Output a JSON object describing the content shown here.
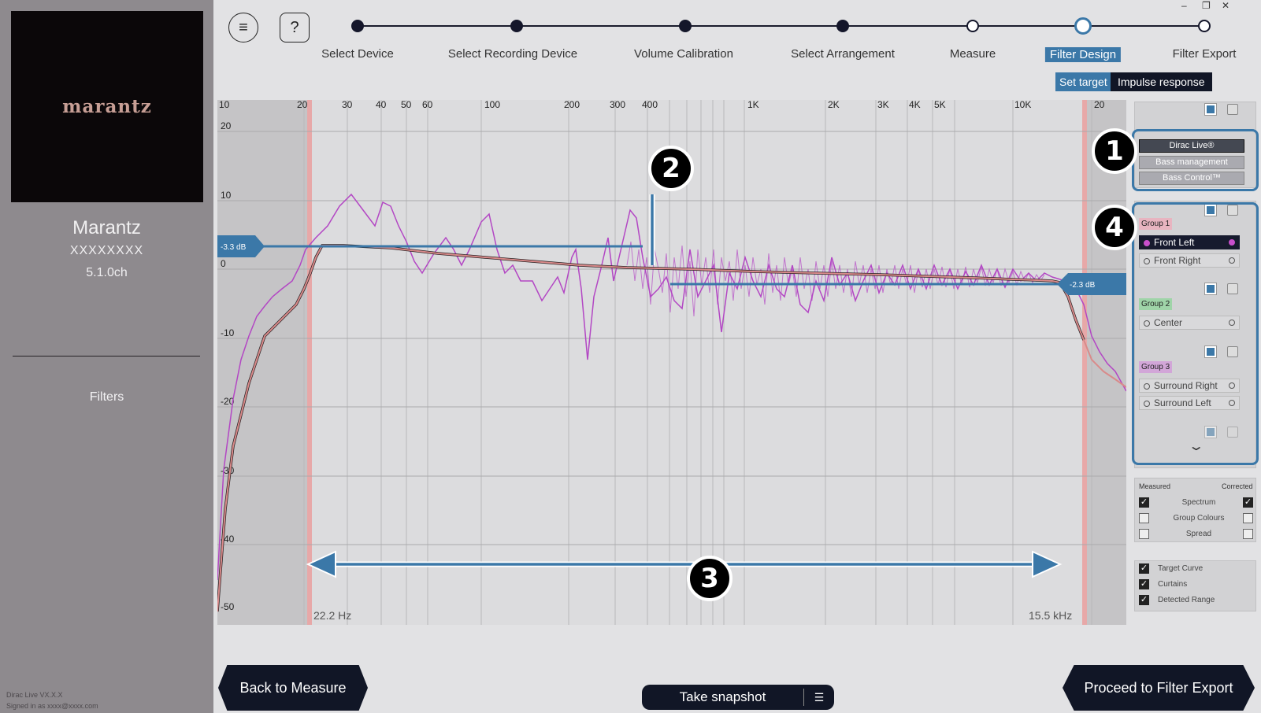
{
  "window": {
    "minimize": "–",
    "restore": "❐",
    "close": "✕"
  },
  "sidebar": {
    "logo": "marantz",
    "device_name": "Marantz",
    "device_model": "XXXXXXXX",
    "channels": "5.1.0ch",
    "section": "Filters",
    "footer_version": "Dirac Live VX.X.X",
    "footer_signed": "Signed in as xxxx@xxxx.com"
  },
  "toolbar": {
    "menu_icon": "≡",
    "help_icon": "?"
  },
  "steps": [
    {
      "label": "Select Device",
      "state": "done"
    },
    {
      "label": "Select Recording Device",
      "state": "done"
    },
    {
      "label": "Volume Calibration",
      "state": "done"
    },
    {
      "label": "Select Arrangement",
      "state": "done"
    },
    {
      "label": "Measure",
      "state": "open"
    },
    {
      "label": "Filter Design",
      "state": "active"
    },
    {
      "label": "Filter Export",
      "state": "open"
    }
  ],
  "subtabs": {
    "selected": "Set target",
    "other": "Impulse response"
  },
  "graph": {
    "x_ticks": [
      "10",
      "20",
      "30",
      "40",
      "50",
      "60",
      "100",
      "200",
      "300",
      "400",
      "1K",
      "2K",
      "3K",
      "4K",
      "5K",
      "10K",
      "20"
    ],
    "y_ticks": [
      "20",
      "10",
      "0",
      "-10",
      "-20",
      "-30",
      "-40",
      "-50"
    ],
    "left_level": "-3.3 dB",
    "right_level": "-2.3 dB",
    "low_limit": "22.2 Hz",
    "high_limit": "15.5 kHz"
  },
  "modes": [
    "Dirac Live®",
    "Bass management",
    "Bass Control™"
  ],
  "groups": [
    {
      "name": "Group 1",
      "color": "#e8b4c0",
      "channels": [
        "Front Left",
        "Front Right"
      ]
    },
    {
      "name": "Group 2",
      "color": "#9fd4a8",
      "channels": [
        "Center"
      ]
    },
    {
      "name": "Group 3",
      "color": "#d2a6d8",
      "channels": [
        "Surround Right",
        "Surround Left"
      ]
    }
  ],
  "display_options": {
    "measured_header": "Measured",
    "corrected_header": "Corrected",
    "rows": [
      {
        "label": "Spectrum",
        "measured": true,
        "corrected": true
      },
      {
        "label": "Group Colours",
        "measured": false,
        "corrected": false
      },
      {
        "label": "Spread",
        "measured": false,
        "corrected": false
      }
    ],
    "extras": [
      {
        "label": "Target Curve",
        "checked": true
      },
      {
        "label": "Curtains",
        "checked": true
      },
      {
        "label": "Detected Range",
        "checked": true
      }
    ]
  },
  "callouts": [
    "1",
    "2",
    "3",
    "4"
  ],
  "buttons": {
    "back": "Back to Measure",
    "snapshot": "Take snapshot",
    "proceed": "Proceed to Filter Export"
  },
  "colors": {
    "accent": "#3b78a8",
    "dark": "#111626",
    "measured_curve": "#b347c4",
    "target_curve": "#d98a8a",
    "curtain_edge": "#e39a9a"
  }
}
